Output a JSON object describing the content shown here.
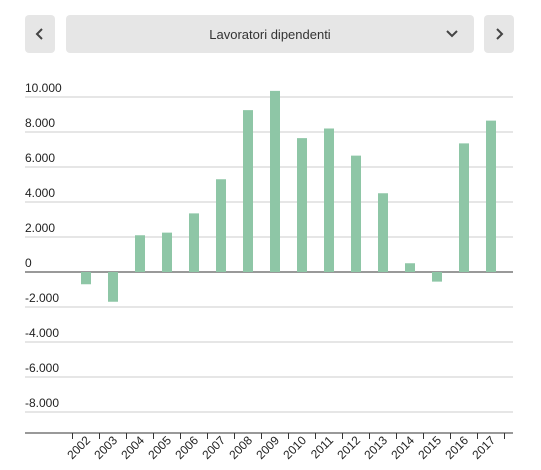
{
  "controls": {
    "dropdown_label": "Lavoratori dipendenti",
    "prev_icon": "chevron-left-icon",
    "next_icon": "chevron-right-icon",
    "dropdown_icon": "chevron-down-icon"
  },
  "colors": {
    "bar": "#8ec6a6",
    "grid": "#cccccc",
    "axis": "#333333",
    "control_bg": "#e6e6e6"
  },
  "chart_data": {
    "type": "bar",
    "categories": [
      "2002",
      "2003",
      "2004",
      "2005",
      "2006",
      "2007",
      "2008",
      "2009",
      "2010",
      "2011",
      "2012",
      "2013",
      "2014",
      "2015",
      "2016",
      "2017"
    ],
    "values": [
      -700,
      -1700,
      2100,
      2250,
      3350,
      5300,
      9250,
      10350,
      7650,
      8200,
      6650,
      4500,
      500,
      -550,
      7350,
      8650
    ],
    "yticks": [
      10000,
      8000,
      6000,
      4000,
      2000,
      0,
      -2000,
      -4000,
      -6000,
      -8000
    ],
    "ytick_labels": [
      "10.000",
      "8.000",
      "6.000",
      "4.000",
      "2.000",
      "0",
      "-2.000",
      "-4.000",
      "-6.000",
      "-8.000"
    ],
    "ylim": [
      -9000,
      10500
    ],
    "grid": true,
    "title": "",
    "xlabel": "",
    "ylabel": ""
  }
}
